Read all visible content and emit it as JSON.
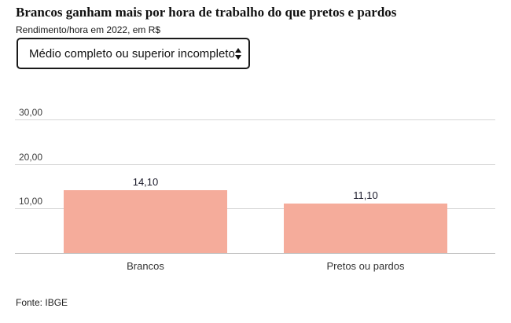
{
  "header": {
    "title": "Brancos ganham mais por hora de trabalho do que pretos e pardos",
    "subtitle": "Rendimento/hora em 2022, em R$"
  },
  "filter": {
    "selected_option": "Médio completo ou superior incompleto"
  },
  "chart_data": {
    "type": "bar",
    "title": "Brancos ganham mais por hora de trabalho do que pretos e pardos",
    "subtitle": "Rendimento/hora em 2022, em R$",
    "categories": [
      "Brancos",
      "Pretos ou pardos"
    ],
    "values": [
      14.1,
      11.1
    ],
    "value_labels": [
      "14,10",
      "11,10"
    ],
    "y_ticks": [
      {
        "value": 10,
        "label": "10,00"
      },
      {
        "value": 20,
        "label": "20,00"
      },
      {
        "value": 30,
        "label": "30,00"
      }
    ],
    "ylim": [
      0,
      30
    ],
    "xlabel": "",
    "ylabel": "",
    "grid": "horizontal",
    "legend": "none"
  },
  "colors": {
    "bar": "#F5AC9B",
    "gridline": "#d6d6d6",
    "baseline": "#c2c2c2",
    "title_text": "#111111",
    "tick_text": "#3d3d3d",
    "value_text": "#1b1b2b",
    "category_text": "#333333"
  },
  "footer": {
    "source": "Fonte: IBGE"
  }
}
